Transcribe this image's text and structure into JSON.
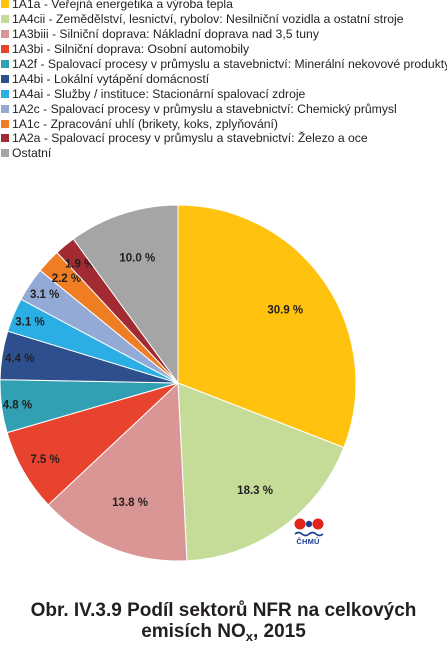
{
  "chart_data": {
    "type": "pie",
    "slices": [
      {
        "label": "1A1a - Veřejná energetika a výroba tepla",
        "value": 30.9,
        "value_label": "30.9 %",
        "color": "#ffc20e"
      },
      {
        "label": "1A4cii - Zemědělství, lesnictví, rybolov: Nesilniční vozidla a ostatní stroje",
        "value": 18.3,
        "value_label": "18.3 %",
        "color": "#c5dc99"
      },
      {
        "label": "1A3biii - Silniční doprava: Nákladní doprava nad 3,5 tuny",
        "value": 13.8,
        "value_label": "13.8 %",
        "color": "#d99694"
      },
      {
        "label": "1A3bi - Silniční doprava: Osobní automobily",
        "value": 7.5,
        "value_label": "7.5 %",
        "color": "#e8432e"
      },
      {
        "label": "1A2f - Spalovací procesy v průmyslu a stavebnictví: Minerální nekovové produkty",
        "value": 4.8,
        "value_label": "4.8 %",
        "color": "#31a0b3"
      },
      {
        "label": "1A4bi - Lokální vytápění domácností",
        "value": 4.4,
        "value_label": "4.4 %",
        "color": "#2e4f8e"
      },
      {
        "label": "1A4ai - Služby / instituce: Stacionární spalovací zdroje",
        "value": 3.1,
        "value_label": "3.1 %",
        "color": "#2aaee3"
      },
      {
        "label": "1A2c - Spalovací procesy v průmyslu a stavebnictví: Chemický průmysl",
        "value": 3.1,
        "value_label": "3.1 %",
        "color": "#93a9d6"
      },
      {
        "label": "1A1c - Zpracování uhlí (brikety, koks, zplyňování)",
        "value": 2.2,
        "value_label": "2.2 %",
        "color": "#ee7d23"
      },
      {
        "label": "1A2a - Spalovací procesy v průmyslu a stavebnictví: Železo a oce",
        "value": 1.9,
        "value_label": "1.9 %",
        "color": "#a12a33"
      },
      {
        "label": "Ostatní",
        "value": 10.0,
        "value_label": "10.0 %",
        "color": "#a6a5a5"
      }
    ],
    "legend_placement": "top"
  },
  "logo": {
    "text": "ČHMÚ"
  },
  "caption": {
    "line1": "Obr. IV.3.9  Podíl sektorů NFR na celkových",
    "line2_pre": "emisích NO",
    "line2_sub": "x",
    "line2_post": ", 2015"
  }
}
